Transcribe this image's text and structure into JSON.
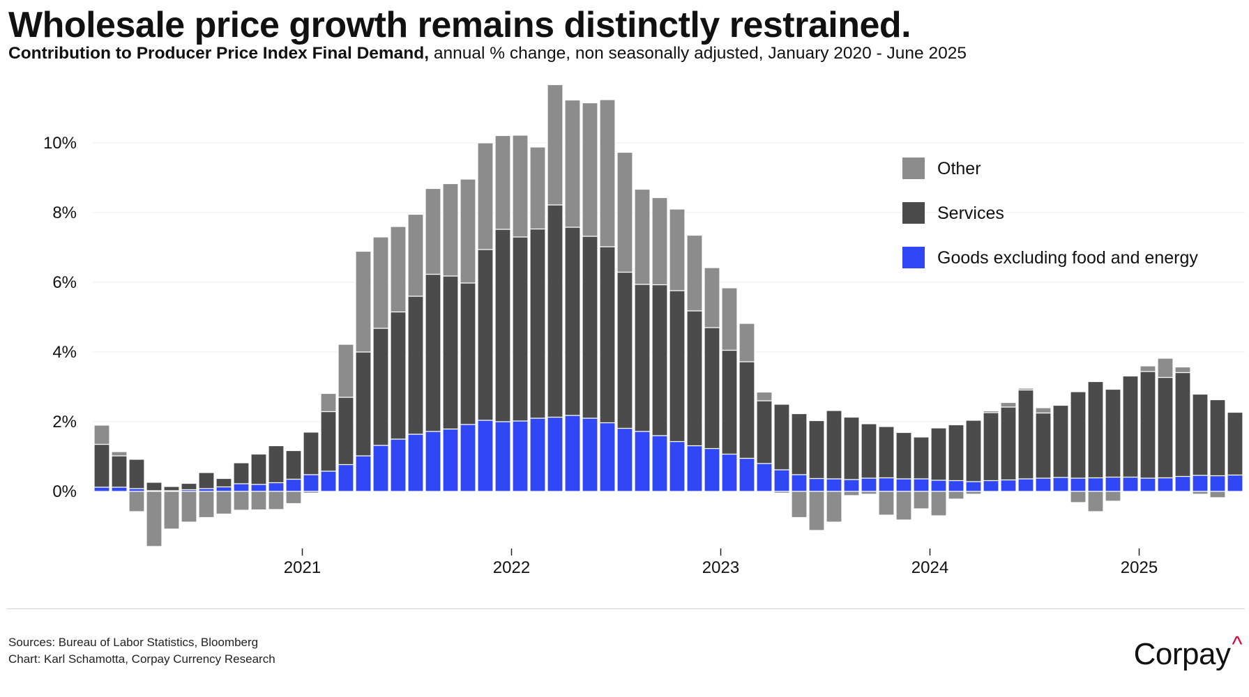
{
  "header": {
    "title": "Wholesale price growth remains distinctly restrained.",
    "subtitle_bold": "Contribution to Producer Price Index Final Demand,",
    "subtitle_rest": " annual % change, non seasonally adjusted, January 2020 - June 2025"
  },
  "footer": {
    "sources": "Sources: Bureau of Labor Statistics, Bloomberg",
    "credit": "Chart: Karl Schamotta, Corpay Currency Research",
    "logo_text": "Corpay",
    "logo_mark": "^"
  },
  "chart_data": {
    "type": "bar",
    "stacked": true,
    "title": "Wholesale price growth remains distinctly restrained.",
    "x_labels": [
      "2021",
      "2022",
      "2023",
      "2024",
      "2025"
    ],
    "x_label_month_index": [
      12,
      24,
      36,
      48,
      60
    ],
    "y_ticks": [
      "0%",
      "2%",
      "4%",
      "6%",
      "8%",
      "10%"
    ],
    "y_tick_values": [
      0,
      2,
      4,
      6,
      8,
      10
    ],
    "ylim": [
      -1.6,
      11.8
    ],
    "grid": true,
    "legend_position": "top-right",
    "colors": {
      "goods": "#2f47f5",
      "services": "#4b4b4b",
      "other": "#8c8c8c"
    },
    "x": [
      "2020-01",
      "2020-02",
      "2020-03",
      "2020-04",
      "2020-05",
      "2020-06",
      "2020-07",
      "2020-08",
      "2020-09",
      "2020-10",
      "2020-11",
      "2020-12",
      "2021-01",
      "2021-02",
      "2021-03",
      "2021-04",
      "2021-05",
      "2021-06",
      "2021-07",
      "2021-08",
      "2021-09",
      "2021-10",
      "2021-11",
      "2021-12",
      "2022-01",
      "2022-02",
      "2022-03",
      "2022-04",
      "2022-05",
      "2022-06",
      "2022-07",
      "2022-08",
      "2022-09",
      "2022-10",
      "2022-11",
      "2022-12",
      "2023-01",
      "2023-02",
      "2023-03",
      "2023-04",
      "2023-05",
      "2023-06",
      "2023-07",
      "2023-08",
      "2023-09",
      "2023-10",
      "2023-11",
      "2023-12",
      "2024-01",
      "2024-02",
      "2024-03",
      "2024-04",
      "2024-05",
      "2024-06",
      "2024-07",
      "2024-08",
      "2024-09",
      "2024-10",
      "2024-11",
      "2024-12",
      "2025-01",
      "2025-02",
      "2025-03",
      "2025-04",
      "2025-05",
      "2025-06"
    ],
    "series": [
      {
        "key": "goods",
        "name": "Goods excluding food and energy",
        "values": [
          0.12,
          0.12,
          0.08,
          0.02,
          0.02,
          0.05,
          0.08,
          0.13,
          0.22,
          0.2,
          0.25,
          0.35,
          0.48,
          0.58,
          0.77,
          1.02,
          1.32,
          1.5,
          1.64,
          1.72,
          1.79,
          1.92,
          2.04,
          2.0,
          2.02,
          2.1,
          2.13,
          2.18,
          2.1,
          1.97,
          1.81,
          1.72,
          1.6,
          1.43,
          1.31,
          1.23,
          1.07,
          0.95,
          0.8,
          0.62,
          0.48,
          0.37,
          0.36,
          0.34,
          0.38,
          0.39,
          0.36,
          0.36,
          0.32,
          0.31,
          0.28,
          0.31,
          0.33,
          0.36,
          0.38,
          0.4,
          0.38,
          0.39,
          0.41,
          0.41,
          0.38,
          0.39,
          0.43,
          0.46,
          0.45,
          0.47
        ]
      },
      {
        "key": "services",
        "name": "Services",
        "values": [
          1.23,
          0.9,
          0.84,
          0.24,
          0.12,
          0.18,
          0.46,
          0.24,
          0.6,
          0.87,
          1.06,
          0.82,
          1.22,
          1.71,
          1.93,
          2.98,
          3.36,
          3.65,
          3.96,
          4.51,
          4.39,
          4.06,
          4.9,
          5.52,
          5.28,
          5.43,
          6.09,
          5.4,
          5.22,
          5.05,
          4.48,
          4.22,
          4.33,
          4.33,
          3.87,
          3.47,
          2.98,
          2.77,
          1.8,
          1.88,
          1.75,
          1.66,
          1.96,
          1.79,
          1.56,
          1.47,
          1.33,
          1.2,
          1.5,
          1.6,
          1.76,
          1.95,
          2.09,
          2.55,
          1.87,
          2.07,
          2.48,
          2.76,
          2.52,
          2.9,
          3.06,
          2.88,
          2.98,
          2.33,
          2.18,
          1.8
        ]
      },
      {
        "key": "other",
        "name": "Other",
        "values": [
          0.55,
          0.12,
          -0.58,
          -1.58,
          -1.08,
          -0.88,
          -0.75,
          -0.65,
          -0.54,
          -0.53,
          -0.52,
          -0.35,
          -0.05,
          0.52,
          1.52,
          2.89,
          2.62,
          2.45,
          2.35,
          2.46,
          2.65,
          2.98,
          3.06,
          2.69,
          2.92,
          2.35,
          3.45,
          3.65,
          3.83,
          4.22,
          3.44,
          2.73,
          2.5,
          2.34,
          2.17,
          1.72,
          1.79,
          1.1,
          0.25,
          -0.05,
          -0.75,
          -1.12,
          -0.88,
          -0.12,
          -0.08,
          -0.68,
          -0.82,
          -0.5,
          -0.7,
          -0.22,
          -0.08,
          0.05,
          0.13,
          0.05,
          0.15,
          0.0,
          -0.32,
          -0.58,
          -0.28,
          0.0,
          0.16,
          0.55,
          0.16,
          -0.08,
          -0.18,
          0.0
        ]
      }
    ]
  }
}
